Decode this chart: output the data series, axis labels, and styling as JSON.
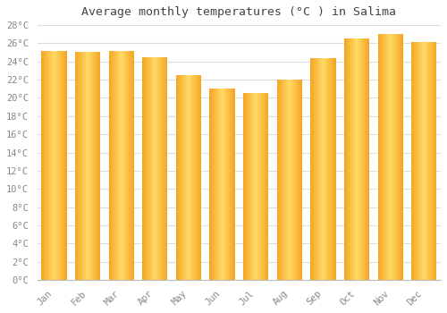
{
  "title": "Average monthly temperatures (°C ) in Salima",
  "months": [
    "Jan",
    "Feb",
    "Mar",
    "Apr",
    "May",
    "Jun",
    "Jul",
    "Aug",
    "Sep",
    "Oct",
    "Nov",
    "Dec"
  ],
  "values": [
    25.2,
    25.1,
    25.2,
    24.5,
    22.5,
    21.0,
    20.5,
    22.0,
    24.4,
    26.5,
    27.0,
    26.1
  ],
  "bar_color_center": "#FFD966",
  "bar_color_edge": "#F5A623",
  "background_color": "#FFFFFF",
  "grid_color": "#DDDDDD",
  "title_fontsize": 9.5,
  "tick_fontsize": 7.5,
  "ylim": [
    0,
    28
  ],
  "ytick_step": 2
}
